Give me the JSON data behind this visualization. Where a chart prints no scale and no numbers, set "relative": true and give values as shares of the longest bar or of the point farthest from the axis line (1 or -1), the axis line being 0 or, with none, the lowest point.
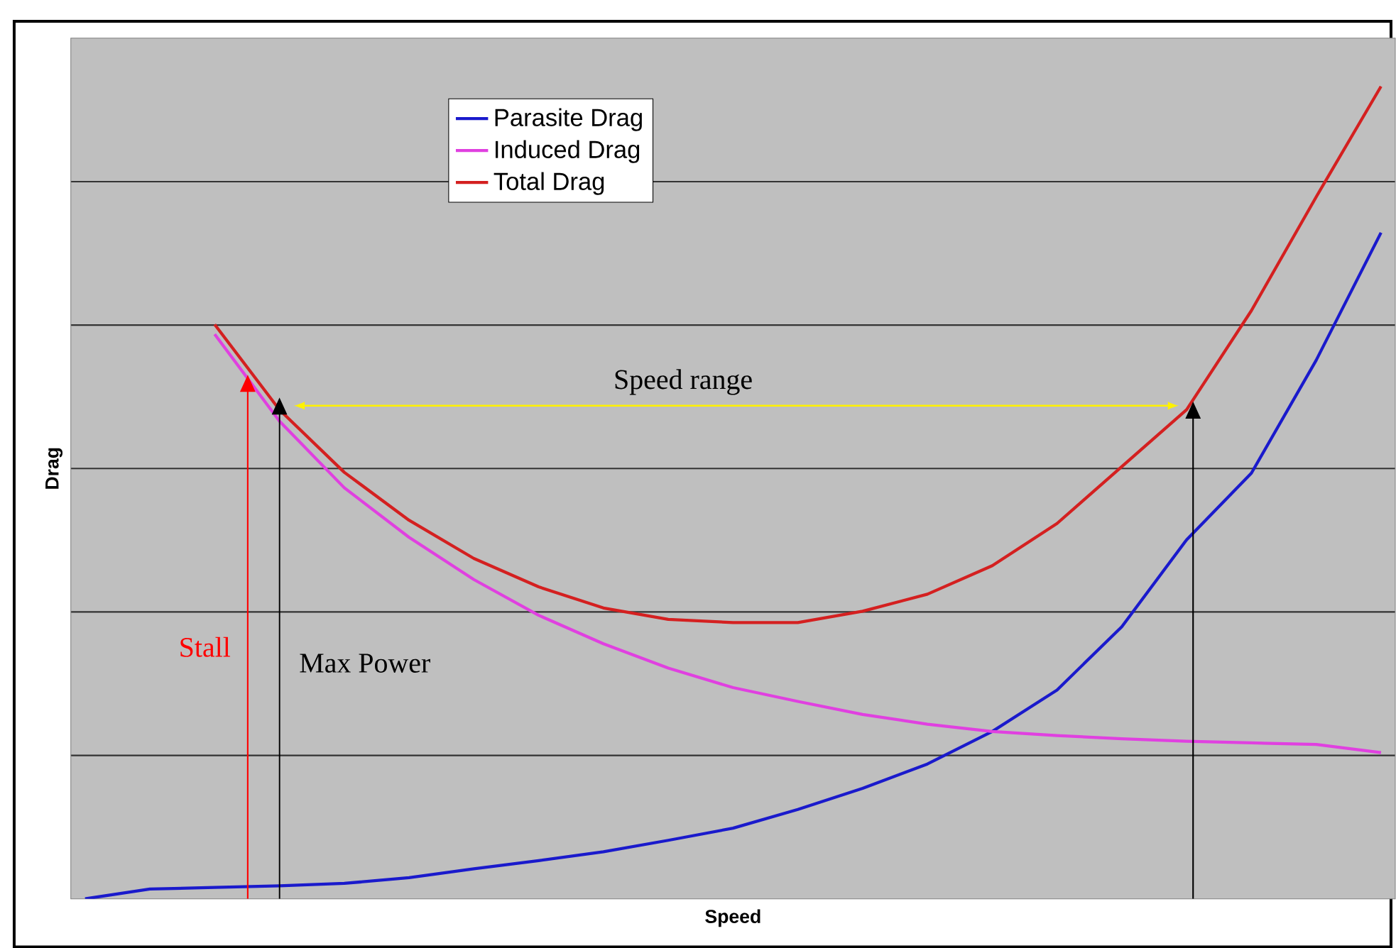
{
  "chart_data": {
    "type": "line",
    "relative": true,
    "xlabel": "Speed",
    "ylabel": "Drag",
    "categories": [
      null,
      null,
      null,
      null,
      null,
      null,
      null,
      null,
      null,
      null,
      null,
      null,
      null,
      null,
      null,
      null,
      null,
      null,
      null,
      null,
      null
    ],
    "series": [
      {
        "name": "Parasite Drag",
        "color": "#1a1acc",
        "values": [
          0,
          0.012,
          0.014,
          0.016,
          0.019,
          0.026,
          0.037,
          0.047,
          0.058,
          0.072,
          0.087,
          0.11,
          0.136,
          0.166,
          0.206,
          0.257,
          0.335,
          0.442,
          0.524,
          0.663,
          0.82
        ]
      },
      {
        "name": "Induced Drag",
        "color": "#e040e0",
        "values": [
          null,
          null,
          0.695,
          0.588,
          0.506,
          0.445,
          0.393,
          0.349,
          0.314,
          0.284,
          0.26,
          0.243,
          0.227,
          0.215,
          0.206,
          0.201,
          0.197,
          0.194,
          0.192,
          0.19,
          0.18
        ]
      },
      {
        "name": "Total Drag",
        "color": "#d42020",
        "values": [
          null,
          null,
          0.707,
          0.602,
          0.525,
          0.466,
          0.419,
          0.384,
          0.358,
          0.344,
          0.34,
          0.34,
          0.354,
          0.375,
          0.41,
          0.462,
          0.532,
          0.602,
          0.724,
          0.864,
          1.0
        ]
      }
    ],
    "annotations": [
      "Speed range",
      "Stall",
      "Max Power"
    ],
    "grid": "y",
    "legend": "top left"
  }
}
